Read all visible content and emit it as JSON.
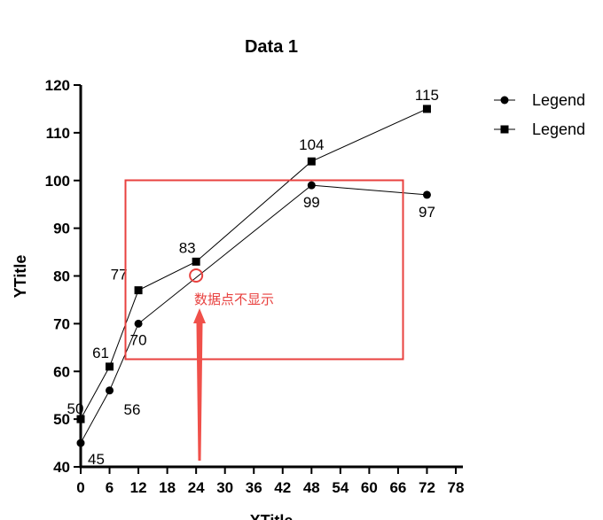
{
  "chart_data": {
    "type": "line",
    "title": "Data 1",
    "xlabel": "XTitle",
    "ylabel": "YTitle",
    "xlim": [
      0,
      78
    ],
    "ylim": [
      40,
      120
    ],
    "x_ticks": [
      "0",
      "6",
      "12",
      "18",
      "24",
      "30",
      "36",
      "42",
      "48",
      "54",
      "60",
      "66",
      "72",
      "78"
    ],
    "y_ticks": [
      "40",
      "50",
      "60",
      "70",
      "80",
      "90",
      "100",
      "110",
      "120"
    ],
    "series": [
      {
        "name": "Legend",
        "marker": "circle",
        "x": [
          0,
          6,
          12,
          48,
          72
        ],
        "y": [
          45,
          56,
          70,
          99,
          97
        ],
        "labels": [
          "45",
          "56",
          "70",
          "99",
          "97"
        ]
      },
      {
        "name": "Legend",
        "marker": "square",
        "x": [
          0,
          6,
          12,
          24,
          48,
          72
        ],
        "y": [
          50,
          61,
          77,
          83,
          104,
          115
        ],
        "labels": [
          "50",
          "61",
          "77",
          "83",
          "104",
          "115"
        ]
      }
    ],
    "legend_position": "top-right",
    "grid": false,
    "annotation": {
      "text": "数据点不显示",
      "color": "#e8413f",
      "marker_point": {
        "x": 24,
        "y": 80
      }
    }
  }
}
